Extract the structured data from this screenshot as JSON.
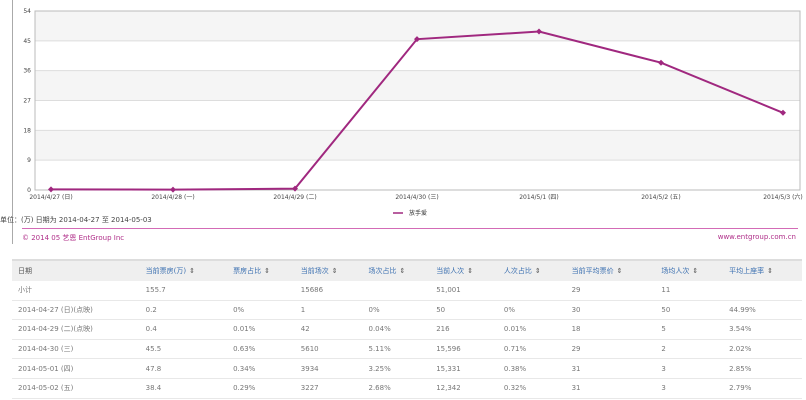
{
  "chart_data": {
    "type": "line",
    "categories": [
      "2014/4/27 (日)",
      "2014/4/28 (一)",
      "2014/4/29 (二)",
      "2014/4/30 (三)",
      "2014/5/1 (四)",
      "2014/5/2 (五)",
      "2014/5/3 (六)"
    ],
    "series": [
      {
        "name": "放手爱",
        "values": [
          0.2,
          0.1,
          0.4,
          45.5,
          47.8,
          38.4,
          23.3
        ],
        "color": "#a0287f"
      }
    ],
    "yticks": [
      0,
      9,
      18,
      27,
      36,
      45,
      54
    ],
    "ylim": [
      0,
      54
    ],
    "grid": true,
    "legend": "bottom-center"
  },
  "note": "单位：(万) 日期为 2014-04-27 至 2014-05-03",
  "footer": {
    "copyright": "© 2014 05 艺恩 EntGroup Inc",
    "url": "www.entgroup.com.cn"
  },
  "table": {
    "headers": [
      "日期",
      "当前票房(万)",
      "票房占比",
      "当前场次",
      "场次占比",
      "当前人次",
      "人次占比",
      "当前平均票价",
      "场均人次",
      "平均上座率"
    ],
    "sort_icon": "⇕",
    "rows": [
      [
        "小计",
        "155.7",
        "",
        "15686",
        "",
        "51,001",
        "",
        "29",
        "11",
        ""
      ],
      [
        "2014-04-27 (日)(点映)",
        "0.2",
        "0%",
        "1",
        "0%",
        "50",
        "0%",
        "30",
        "50",
        "44.99%"
      ],
      [
        "2014-04-29 (二)(点映)",
        "0.4",
        "0.01%",
        "42",
        "0.04%",
        "216",
        "0.01%",
        "18",
        "5",
        "3.54%"
      ],
      [
        "2014-04-30 (三)",
        "45.5",
        "0.63%",
        "5610",
        "5.11%",
        "15,596",
        "0.71%",
        "29",
        "2",
        "2.02%"
      ],
      [
        "2014-05-01 (四)",
        "47.8",
        "0.34%",
        "3934",
        "3.25%",
        "15,331",
        "0.38%",
        "31",
        "3",
        "2.85%"
      ],
      [
        "2014-05-02 (五)",
        "38.4",
        "0.29%",
        "3227",
        "2.68%",
        "12,342",
        "0.32%",
        "31",
        "3",
        "2.79%"
      ]
    ]
  }
}
